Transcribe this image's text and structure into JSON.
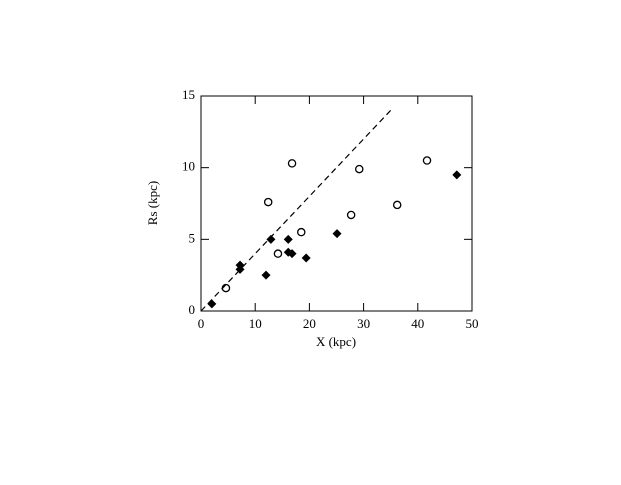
{
  "chart_data": {
    "type": "scatter",
    "xlabel": "X  (kpc)",
    "ylabel": "Rs  (kpc)",
    "xlim": [
      0,
      50
    ],
    "ylim": [
      0,
      15
    ],
    "xticks": [
      0,
      10,
      20,
      30,
      40,
      50
    ],
    "yticks": [
      0,
      5,
      10,
      15
    ],
    "series": [
      {
        "marker": "open-circle",
        "color": "#000000",
        "x": [
          4.6,
          12.4,
          16.8,
          14.2,
          18.5,
          27.7,
          29.2,
          36.2,
          41.7
        ],
        "values": [
          1.6,
          7.6,
          10.3,
          4.0,
          5.5,
          6.7,
          9.9,
          7.4,
          10.5
        ]
      },
      {
        "marker": "filled-diamond",
        "color": "#000000",
        "x": [
          2.0,
          7.2,
          7.2,
          12.0,
          12.9,
          16.1,
          16.1,
          16.8,
          19.4,
          25.1,
          47.2
        ],
        "values": [
          0.5,
          3.2,
          2.9,
          2.5,
          5.0,
          5.0,
          4.1,
          4.0,
          3.7,
          5.4,
          9.5
        ]
      },
      {
        "marker": "dashed-line",
        "color": "#000000",
        "x": [
          0,
          35
        ],
        "values": [
          0,
          14
        ]
      }
    ]
  }
}
